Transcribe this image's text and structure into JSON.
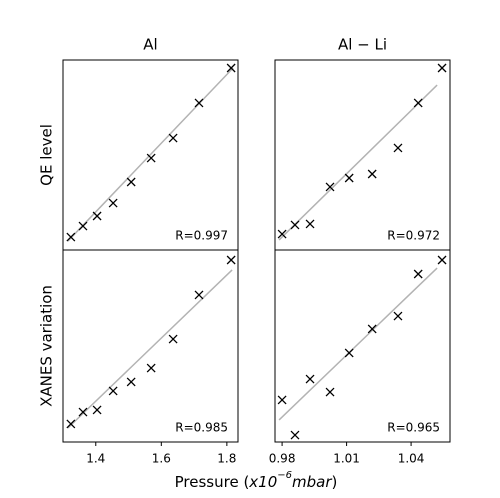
{
  "figure": {
    "xlabel": {
      "prefix": "Pressure (",
      "base": "x10",
      "exp": "−6",
      "unit": "mbar",
      "suffix": ")"
    }
  },
  "chart_data": [
    {
      "type": "scatter",
      "title": "Al",
      "ylabel": "QE level",
      "annotation": "R=0.997",
      "xlim": [
        1.3,
        1.834
      ],
      "ylim": [
        0,
        1
      ],
      "marker_color": "#000000",
      "fit_color": "#b3b3b3",
      "x": [
        1.324,
        1.361,
        1.404,
        1.453,
        1.508,
        1.569,
        1.636,
        1.715,
        1.813
      ],
      "values": [
        0.068,
        0.126,
        0.179,
        0.247,
        0.358,
        0.484,
        0.589,
        0.774,
        0.958
      ],
      "fit": {
        "x": [
          1.315,
          1.819
        ],
        "values": [
          0.047,
          0.958
        ]
      }
    },
    {
      "type": "scatter",
      "title": "Al − Li",
      "annotation": "R=0.972",
      "xlim": [
        0.9767,
        1.0581
      ],
      "ylim": [
        0,
        1
      ],
      "marker_color": "#000000",
      "fit_color": "#b3b3b3",
      "x": [
        0.98,
        0.986,
        0.993,
        1.0023,
        1.0112,
        1.0219,
        1.0339,
        1.0433,
        1.0544
      ],
      "values": [
        0.084,
        0.132,
        0.137,
        0.332,
        0.379,
        0.4,
        0.537,
        0.774,
        0.958
      ],
      "fit": {
        "x": [
          0.9786,
          1.0521
        ],
        "values": [
          0.053,
          0.868
        ]
      }
    },
    {
      "type": "scatter",
      "ylabel": "XANES variation",
      "annotation": "R=0.985",
      "xlim": [
        1.3,
        1.834
      ],
      "xticks": [
        1.4,
        1.6,
        1.8
      ],
      "ylim": [
        0,
        1
      ],
      "marker_color": "#000000",
      "fit_color": "#b3b3b3",
      "x": [
        1.324,
        1.361,
        1.404,
        1.453,
        1.508,
        1.569,
        1.636,
        1.715,
        1.813
      ],
      "values": [
        0.094,
        0.156,
        0.167,
        0.266,
        0.313,
        0.385,
        0.536,
        0.766,
        0.948
      ],
      "fit": {
        "x": [
          1.315,
          1.816
        ],
        "values": [
          0.073,
          0.896
        ]
      }
    },
    {
      "type": "scatter",
      "annotation": "R=0.965",
      "xlim": [
        0.9767,
        1.0581
      ],
      "xticks": [
        0.98,
        1.01,
        1.04
      ],
      "ylim": [
        0,
        1
      ],
      "marker_color": "#000000",
      "fit_color": "#b3b3b3",
      "x": [
        0.98,
        0.986,
        0.993,
        1.0023,
        1.0112,
        1.0219,
        1.0339,
        1.0433,
        1.0544
      ],
      "values": [
        0.219,
        0.036,
        0.328,
        0.26,
        0.464,
        0.589,
        0.656,
        0.875,
        0.948
      ],
      "fit": {
        "x": [
          0.9786,
          1.0521
        ],
        "values": [
          0.115,
          0.906
        ]
      }
    }
  ]
}
